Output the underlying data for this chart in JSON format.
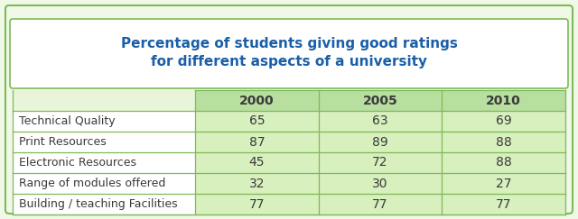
{
  "title_line1": "Percentage of students giving good ratings",
  "title_line2": "for different aspects of a university",
  "columns": [
    "2000",
    "2005",
    "2010"
  ],
  "rows": [
    {
      "label": "Technical Quality",
      "values": [
        65,
        63,
        69
      ]
    },
    {
      "label": "Print Resources",
      "values": [
        87,
        89,
        88
      ]
    },
    {
      "label": "Electronic Resources",
      "values": [
        45,
        72,
        88
      ]
    },
    {
      "label": "Range of modules offered",
      "values": [
        32,
        30,
        27
      ]
    },
    {
      "label": "Building / teaching Facilities",
      "values": [
        77,
        77,
        77
      ]
    }
  ],
  "title_color": "#1a5fa8",
  "header_bg": "#b8dfa0",
  "row_bg": "#d8efbe",
  "border_color": "#7dba57",
  "label_text_color": "#3a3a3a",
  "value_text_color": "#3a3a3a",
  "outer_border_color": "#7dba57",
  "outer_border2_color": "#a8d4f0",
  "fig_bg": "#f0f8e8",
  "title_box_bg": "#ffffff",
  "table_bg": "#e8f5d8"
}
